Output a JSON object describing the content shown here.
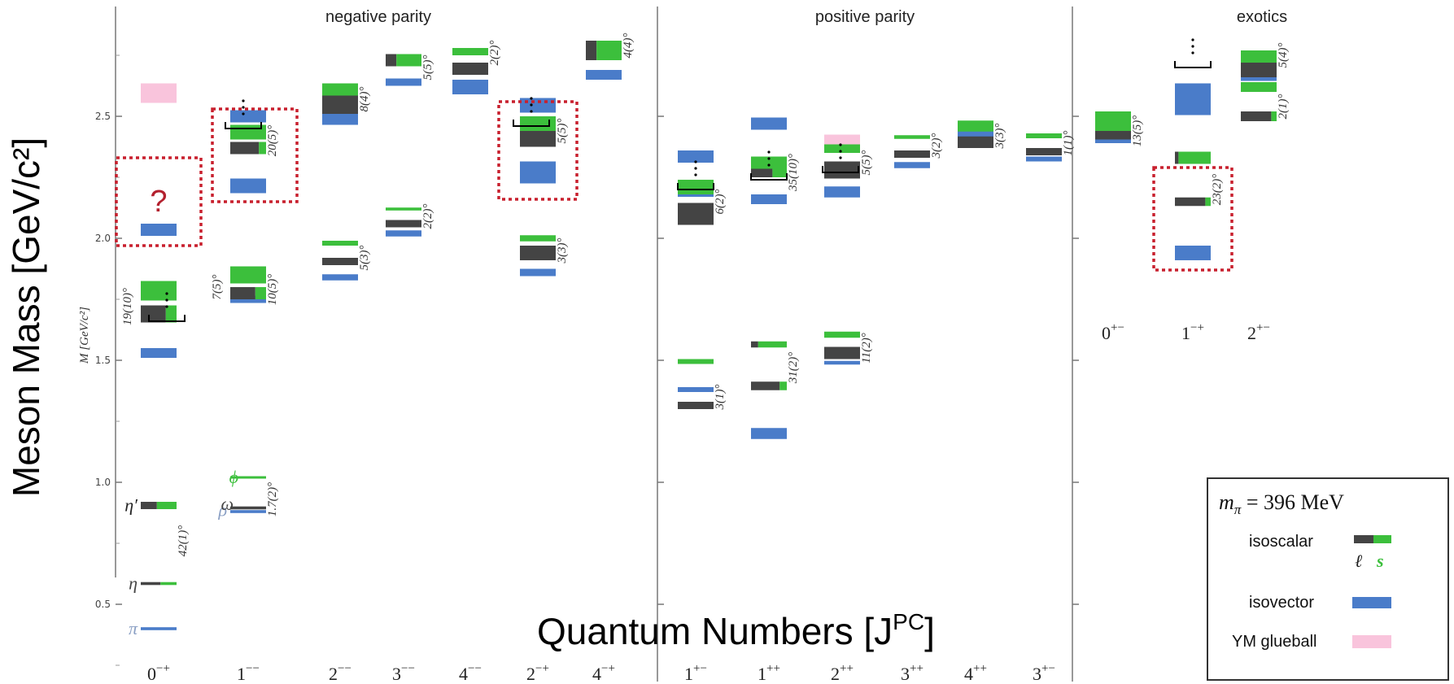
{
  "chart_data": {
    "type": "bar",
    "title": "",
    "ylabel": "Meson Mass [GeV/c²]",
    "ylabel_inner": "M  [GeV/c²]",
    "xlabel": "Quantum Numbers [J",
    "xlabel_sup": "PC",
    "xlabel_end": "]",
    "ylim": [
      0.25,
      2.95
    ],
    "yticks": [
      {
        "v": 0.5,
        "label": "0.5"
      },
      {
        "v": 1.0,
        "label": "1.0"
      },
      {
        "v": 1.5,
        "label": "1.5"
      },
      {
        "v": 2.0,
        "label": "2.0"
      },
      {
        "v": 2.5,
        "label": "2.5"
      }
    ],
    "colors": {
      "isovector": "#4a7cc9",
      "light": "#444444",
      "strange": "#3cbf3c",
      "glueball": "#f9c4dc",
      "box": "#c8202e"
    },
    "regions": [
      "negative parity",
      "positive parity",
      "exotics"
    ],
    "categories": [
      {
        "label": "0",
        "sup": "−+"
      },
      {
        "label": "1",
        "sup": "−−"
      },
      {
        "label": "2",
        "sup": "−−"
      },
      {
        "label": "3",
        "sup": "−−"
      },
      {
        "label": "4",
        "sup": "−−"
      },
      {
        "label": "2",
        "sup": "−+"
      },
      {
        "label": "4",
        "sup": "−+"
      },
      {
        "label": "1",
        "sup": "+−"
      },
      {
        "label": "1",
        "sup": "++"
      },
      {
        "label": "2",
        "sup": "++"
      },
      {
        "label": "3",
        "sup": "++"
      },
      {
        "label": "4",
        "sup": "++"
      },
      {
        "label": "3",
        "sup": "+−"
      },
      {
        "label": "0",
        "sup": "+−"
      },
      {
        "label": "1",
        "sup": "−+"
      },
      {
        "label": "2",
        "sup": "+−"
      }
    ],
    "states": [
      {
        "cat": "0-+",
        "kind": "isovector",
        "m": 0.4,
        "h": 0.012
      },
      {
        "cat": "0-+",
        "kind": "mixed",
        "m": 0.585,
        "h": 0.012,
        "frac": 0.55
      },
      {
        "cat": "0-+",
        "kind": "mixed",
        "m": 0.905,
        "h": 0.03,
        "frac": 0.45
      },
      {
        "cat": "0-+",
        "kind": "isovector",
        "m": 1.53,
        "h": 0.04
      },
      {
        "cat": "0-+",
        "kind": "mixed",
        "m": 1.69,
        "h": 0.07,
        "frac": 0.7
      },
      {
        "cat": "0-+",
        "kind": "strange",
        "m": 1.785,
        "h": 0.08
      },
      {
        "cat": "0-+",
        "kind": "isovector",
        "m": 2.035,
        "h": 0.05
      },
      {
        "cat": "0-+",
        "kind": "glueball",
        "m": 2.595,
        "h": 0.08
      },
      {
        "cat": "1--",
        "kind": "isovector",
        "m": 0.88,
        "h": 0.012
      },
      {
        "cat": "1--",
        "kind": "light",
        "m": 0.895,
        "h": 0.012
      },
      {
        "cat": "1--",
        "kind": "strange",
        "m": 1.02,
        "h": 0.008
      },
      {
        "cat": "1--",
        "kind": "isovector",
        "m": 1.75,
        "h": 0.03
      },
      {
        "cat": "1--",
        "kind": "mixed",
        "m": 1.775,
        "h": 0.05,
        "frac": 0.7
      },
      {
        "cat": "1--",
        "kind": "strange",
        "m": 1.85,
        "h": 0.07
      },
      {
        "cat": "1--",
        "kind": "isovector",
        "m": 2.215,
        "h": 0.06
      },
      {
        "cat": "1--",
        "kind": "mixed",
        "m": 2.37,
        "h": 0.05,
        "frac": 0.8
      },
      {
        "cat": "1--",
        "kind": "strange",
        "m": 2.435,
        "h": 0.06
      },
      {
        "cat": "1--",
        "kind": "isovector",
        "m": 2.5,
        "h": 0.05
      },
      {
        "cat": "2--",
        "kind": "isovector",
        "m": 1.84,
        "h": 0.025
      },
      {
        "cat": "2--",
        "kind": "light",
        "m": 1.905,
        "h": 0.03
      },
      {
        "cat": "2--",
        "kind": "strange",
        "m": 1.98,
        "h": 0.02
      },
      {
        "cat": "2--",
        "kind": "isovector",
        "m": 2.49,
        "h": 0.05
      },
      {
        "cat": "2--",
        "kind": "light",
        "m": 2.55,
        "h": 0.08
      },
      {
        "cat": "2--",
        "kind": "strange",
        "m": 2.61,
        "h": 0.05
      },
      {
        "cat": "3--",
        "kind": "isovector",
        "m": 2.02,
        "h": 0.025
      },
      {
        "cat": "3--",
        "kind": "light",
        "m": 2.06,
        "h": 0.03
      },
      {
        "cat": "3--",
        "kind": "strange",
        "m": 2.12,
        "h": 0.012
      },
      {
        "cat": "3--",
        "kind": "isovector",
        "m": 2.64,
        "h": 0.03
      },
      {
        "cat": "3--",
        "kind": "mixed",
        "m": 2.73,
        "h": 0.05,
        "frac": 0.3
      },
      {
        "cat": "4--",
        "kind": "isovector",
        "m": 2.62,
        "h": 0.06
      },
      {
        "cat": "4--",
        "kind": "light",
        "m": 2.695,
        "h": 0.05
      },
      {
        "cat": "4--",
        "kind": "strange",
        "m": 2.765,
        "h": 0.03
      },
      {
        "cat": "2-+",
        "kind": "isovector",
        "m": 1.86,
        "h": 0.03
      },
      {
        "cat": "2-+",
        "kind": "light",
        "m": 1.94,
        "h": 0.06
      },
      {
        "cat": "2-+",
        "kind": "strange",
        "m": 2.0,
        "h": 0.025
      },
      {
        "cat": "2-+",
        "kind": "isovector",
        "m": 2.27,
        "h": 0.09
      },
      {
        "cat": "2-+",
        "kind": "light",
        "m": 2.41,
        "h": 0.07
      },
      {
        "cat": "2-+",
        "kind": "strange",
        "m": 2.47,
        "h": 0.06
      },
      {
        "cat": "2-+",
        "kind": "isovector",
        "m": 2.545,
        "h": 0.06
      },
      {
        "cat": "4-+",
        "kind": "isovector",
        "m": 2.67,
        "h": 0.04
      },
      {
        "cat": "4-+",
        "kind": "mixed",
        "m": 2.77,
        "h": 0.08,
        "frac": 0.3
      },
      {
        "cat": "1+-",
        "kind": "light",
        "m": 1.315,
        "h": 0.03
      },
      {
        "cat": "1+-",
        "kind": "isovector",
        "m": 1.38,
        "h": 0.02
      },
      {
        "cat": "1+-",
        "kind": "strange",
        "m": 1.495,
        "h": 0.02
      },
      {
        "cat": "1+-",
        "kind": "light",
        "m": 2.1,
        "h": 0.09
      },
      {
        "cat": "1+-",
        "kind": "isovector",
        "m": 2.18,
        "h": 0.02
      },
      {
        "cat": "1+-",
        "kind": "strange",
        "m": 2.21,
        "h": 0.06
      },
      {
        "cat": "1+-",
        "kind": "isovector",
        "m": 2.335,
        "h": 0.05
      },
      {
        "cat": "1++",
        "kind": "isovector",
        "m": 1.2,
        "h": 0.045
      },
      {
        "cat": "1++",
        "kind": "mixed",
        "m": 1.395,
        "h": 0.035,
        "frac": 0.8
      },
      {
        "cat": "1++",
        "kind": "mixed",
        "m": 1.565,
        "h": 0.025,
        "frac": 0.2
      },
      {
        "cat": "1++",
        "kind": "isovector",
        "m": 2.16,
        "h": 0.04
      },
      {
        "cat": "1++",
        "kind": "mixed",
        "m": 2.28,
        "h": 0.06,
        "frac": 0.6
      },
      {
        "cat": "1++",
        "kind": "strange",
        "m": 2.31,
        "h": 0.05
      },
      {
        "cat": "1++",
        "kind": "isovector",
        "m": 2.47,
        "h": 0.05
      },
      {
        "cat": "2++",
        "kind": "isovector",
        "m": 1.49,
        "h": 0.015
      },
      {
        "cat": "2++",
        "kind": "light",
        "m": 1.53,
        "h": 0.05
      },
      {
        "cat": "2++",
        "kind": "strange",
        "m": 1.605,
        "h": 0.025
      },
      {
        "cat": "2++",
        "kind": "isovector",
        "m": 2.19,
        "h": 0.045
      },
      {
        "cat": "2++",
        "kind": "light",
        "m": 2.28,
        "h": 0.07
      },
      {
        "cat": "2++",
        "kind": "strange",
        "m": 2.37,
        "h": 0.04
      },
      {
        "cat": "2++",
        "kind": "glueball",
        "m": 2.405,
        "h": 0.04
      },
      {
        "cat": "3++",
        "kind": "isovector",
        "m": 2.3,
        "h": 0.025
      },
      {
        "cat": "3++",
        "kind": "light",
        "m": 2.345,
        "h": 0.03
      },
      {
        "cat": "3++",
        "kind": "strange",
        "m": 2.415,
        "h": 0.015
      },
      {
        "cat": "4++",
        "kind": "light",
        "m": 2.395,
        "h": 0.05
      },
      {
        "cat": "4++",
        "kind": "isovector",
        "m": 2.43,
        "h": 0.025
      },
      {
        "cat": "4++",
        "kind": "strange",
        "m": 2.46,
        "h": 0.045
      },
      {
        "cat": "3+-",
        "kind": "isovector",
        "m": 2.325,
        "h": 0.02
      },
      {
        "cat": "3+-",
        "kind": "light",
        "m": 2.355,
        "h": 0.03
      },
      {
        "cat": "3+-",
        "kind": "strange",
        "m": 2.42,
        "h": 0.02
      },
      {
        "cat": "0+-",
        "kind": "isovector",
        "m": 2.41,
        "h": 0.04
      },
      {
        "cat": "0+-",
        "kind": "light",
        "m": 2.43,
        "h": 0.05
      },
      {
        "cat": "0+-",
        "kind": "strange",
        "m": 2.48,
        "h": 0.08
      },
      {
        "cat": "1-+",
        "kind": "isovector",
        "m": 1.94,
        "h": 0.06
      },
      {
        "cat": "1-+",
        "kind": "mixed",
        "m": 2.15,
        "h": 0.035,
        "frac": 0.85
      },
      {
        "cat": "1-+",
        "kind": "mixed",
        "m": 2.33,
        "h": 0.05,
        "frac": 0.1
      },
      {
        "cat": "1-+",
        "kind": "isovector",
        "m": 2.57,
        "h": 0.13
      },
      {
        "cat": "2+-",
        "kind": "mixed",
        "m": 2.5,
        "h": 0.04,
        "frac": 0.85
      },
      {
        "cat": "2+-",
        "kind": "strange",
        "m": 2.62,
        "h": 0.04
      },
      {
        "cat": "2+-",
        "kind": "isovector",
        "m": 2.67,
        "h": 0.05
      },
      {
        "cat": "2+-",
        "kind": "light",
        "m": 2.69,
        "h": 0.06
      },
      {
        "cat": "2+-",
        "kind": "strange",
        "m": 2.745,
        "h": 0.05
      }
    ],
    "mixing_angles": [
      {
        "cat": "0-+",
        "m": 0.76,
        "text": "42(1)°"
      },
      {
        "cat": "0-+",
        "m": 1.72,
        "text": "19(10)°",
        "side": "left"
      },
      {
        "cat": "1--",
        "m": 0.93,
        "text": "1.7(2)°"
      },
      {
        "cat": "1--",
        "m": 1.8,
        "text": "7(5)°",
        "side": "left"
      },
      {
        "cat": "1--",
        "m": 1.79,
        "text": "10(5)°"
      },
      {
        "cat": "1--",
        "m": 2.4,
        "text": "20(5)°"
      },
      {
        "cat": "2--",
        "m": 1.92,
        "text": "5(3)°"
      },
      {
        "cat": "2--",
        "m": 2.57,
        "text": "8(4)°"
      },
      {
        "cat": "3--",
        "m": 2.09,
        "text": "2(2)°"
      },
      {
        "cat": "3--",
        "m": 2.7,
        "text": "5(5)°"
      },
      {
        "cat": "4--",
        "m": 2.76,
        "text": "2(2)°"
      },
      {
        "cat": "2-+",
        "m": 1.95,
        "text": "3(3)°"
      },
      {
        "cat": "2-+",
        "m": 2.44,
        "text": "5(5)°"
      },
      {
        "cat": "4-+",
        "m": 2.79,
        "text": "4(4)°"
      },
      {
        "cat": "1+-",
        "m": 1.35,
        "text": "3(1)°"
      },
      {
        "cat": "1+-",
        "m": 2.15,
        "text": "6(2)°"
      },
      {
        "cat": "1++",
        "m": 1.47,
        "text": "31(2)°"
      },
      {
        "cat": "1++",
        "m": 2.27,
        "text": "35(10)°"
      },
      {
        "cat": "2++",
        "m": 1.55,
        "text": "11(2)°"
      },
      {
        "cat": "2++",
        "m": 2.31,
        "text": "5(5)°"
      },
      {
        "cat": "3++",
        "m": 2.38,
        "text": "3(2)°"
      },
      {
        "cat": "4++",
        "m": 2.42,
        "text": "3(3)°"
      },
      {
        "cat": "3+-",
        "m": 2.39,
        "text": "1(1)°"
      },
      {
        "cat": "0+-",
        "m": 2.44,
        "text": "13(5)°"
      },
      {
        "cat": "1-+",
        "m": 2.2,
        "text": "23(2)°"
      },
      {
        "cat": "2+-",
        "m": 2.54,
        "text": "2(1)°"
      },
      {
        "cat": "2+-",
        "m": 2.75,
        "text": "5(4)°"
      }
    ],
    "state_labels": [
      {
        "cat": "0-+",
        "m": 0.4,
        "text": "π",
        "color": "#8a9fc4"
      },
      {
        "cat": "0-+",
        "m": 0.585,
        "text": "η",
        "color": "#444444"
      },
      {
        "cat": "0-+",
        "m": 0.905,
        "text": "η′",
        "color": "#222222"
      },
      {
        "cat": "1--",
        "m": 0.885,
        "text": "ρ",
        "color": "#8a9fc4"
      },
      {
        "cat": "1--",
        "m": 0.91,
        "text": "ω",
        "color": "#444444"
      },
      {
        "cat": "1--",
        "m": 1.02,
        "text": "ϕ",
        "color": "#3cbf3c"
      }
    ],
    "highlight_boxes": [
      {
        "cat": "0-+",
        "m0": 1.97,
        "m1": 2.33,
        "question": "?"
      },
      {
        "cat": "1--",
        "m0": 2.15,
        "m1": 2.53
      },
      {
        "cat": "2-+",
        "m0": 2.16,
        "m1": 2.56
      },
      {
        "cat": "1-+",
        "m0": 1.87,
        "m1": 2.29
      }
    ],
    "legend": {
      "title": "m",
      "title_sub": "π",
      "title_rest": " = 396 MeV",
      "isoscalar": "isoscalar",
      "ell": "ℓ",
      "s": "s",
      "isovector": "isovector",
      "glueball": "YM glueball",
      "placement": "bottom-right"
    }
  }
}
